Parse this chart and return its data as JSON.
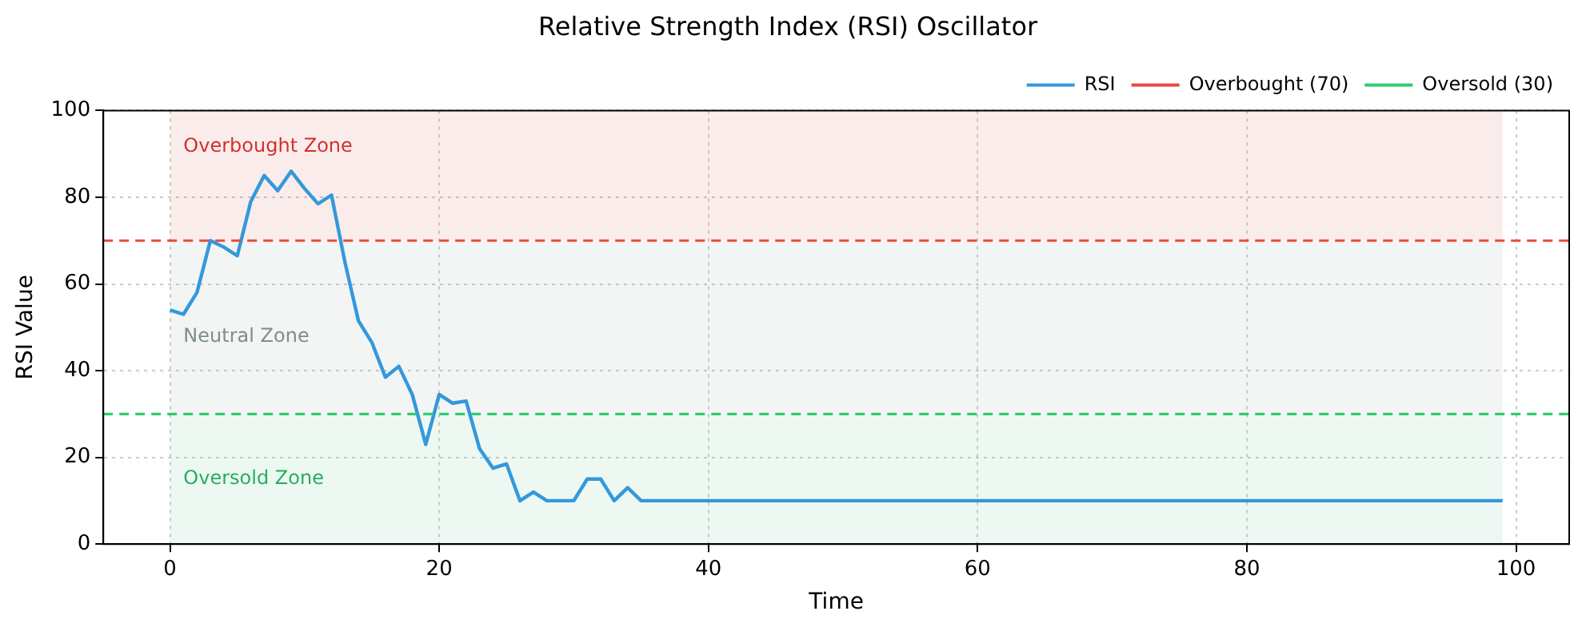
{
  "chart_data": {
    "type": "line",
    "title": "Relative Strength Index (RSI) Oscillator",
    "xlabel": "Time",
    "ylabel": "RSI Value",
    "x": [
      0,
      1,
      2,
      3,
      4,
      5,
      6,
      7,
      8,
      9,
      10,
      11,
      12,
      13,
      14,
      15,
      16,
      17,
      18,
      19,
      20,
      21,
      22,
      23,
      24,
      25,
      26,
      27,
      28,
      29,
      30,
      31,
      32,
      33,
      34,
      35,
      36,
      37,
      38,
      39,
      40,
      41,
      42,
      43,
      44,
      45,
      46,
      47,
      48,
      49,
      50,
      51,
      52,
      53,
      54,
      55,
      56,
      57,
      58,
      59,
      60,
      61,
      62,
      63,
      64,
      65,
      66,
      67,
      68,
      69,
      70,
      71,
      72,
      73,
      74,
      75,
      76,
      77,
      78,
      79,
      80,
      81,
      82,
      83,
      84,
      85,
      86,
      87,
      88,
      89,
      90,
      91,
      92,
      93,
      94,
      95,
      96,
      97,
      98,
      99
    ],
    "series": [
      {
        "name": "RSI",
        "color": "#3498db",
        "values": [
          54,
          53,
          58,
          70,
          68.5,
          66.5,
          79,
          85,
          81.5,
          86,
          82,
          78.5,
          80.5,
          65,
          51.5,
          46.5,
          38.5,
          41,
          34.5,
          23,
          34.5,
          32.5,
          33,
          22,
          17.5,
          18.5,
          10,
          12,
          10,
          10,
          10,
          15,
          15,
          10,
          13,
          10,
          10,
          10,
          10,
          10,
          10,
          10,
          10,
          10,
          10,
          10,
          10,
          10,
          10,
          10,
          10,
          10,
          10,
          10,
          10,
          10,
          10,
          10,
          10,
          10,
          10,
          10,
          10,
          10,
          10,
          10,
          10,
          10,
          10,
          10,
          10,
          10,
          10,
          10,
          10,
          10,
          10,
          10,
          10,
          10,
          10,
          10,
          10,
          10,
          10,
          10,
          10,
          10,
          10,
          10,
          10,
          10,
          10,
          10,
          10,
          10,
          10,
          10,
          10,
          10
        ]
      }
    ],
    "ref_lines": [
      {
        "axis": "y",
        "value": 70,
        "label": "Overbought (70)",
        "color": "#e74c3c",
        "line_style": "dashed"
      },
      {
        "axis": "y",
        "value": 30,
        "label": "Oversold (30)",
        "color": "#2ecc71",
        "line_style": "dashed"
      }
    ],
    "bands": [
      {
        "axis": "y",
        "from": 70,
        "to": 100,
        "label": "Overbought Zone",
        "color": "#d0312d"
      },
      {
        "axis": "y",
        "from": 30,
        "to": 70,
        "label": "Neutral Zone",
        "color": "#7f8c8d"
      },
      {
        "axis": "y",
        "from": 0,
        "to": 30,
        "label": "Oversold Zone",
        "color": "#27ae60"
      }
    ],
    "xlim": [
      -4.95,
      103.95
    ],
    "xticks": [
      0,
      20,
      40,
      60,
      80,
      100
    ],
    "ylim": [
      0,
      100
    ],
    "yticks": [
      0,
      20,
      40,
      60,
      80,
      100
    ],
    "grid": true,
    "legend": "top right",
    "line_style": "solid",
    "marker": "none"
  }
}
